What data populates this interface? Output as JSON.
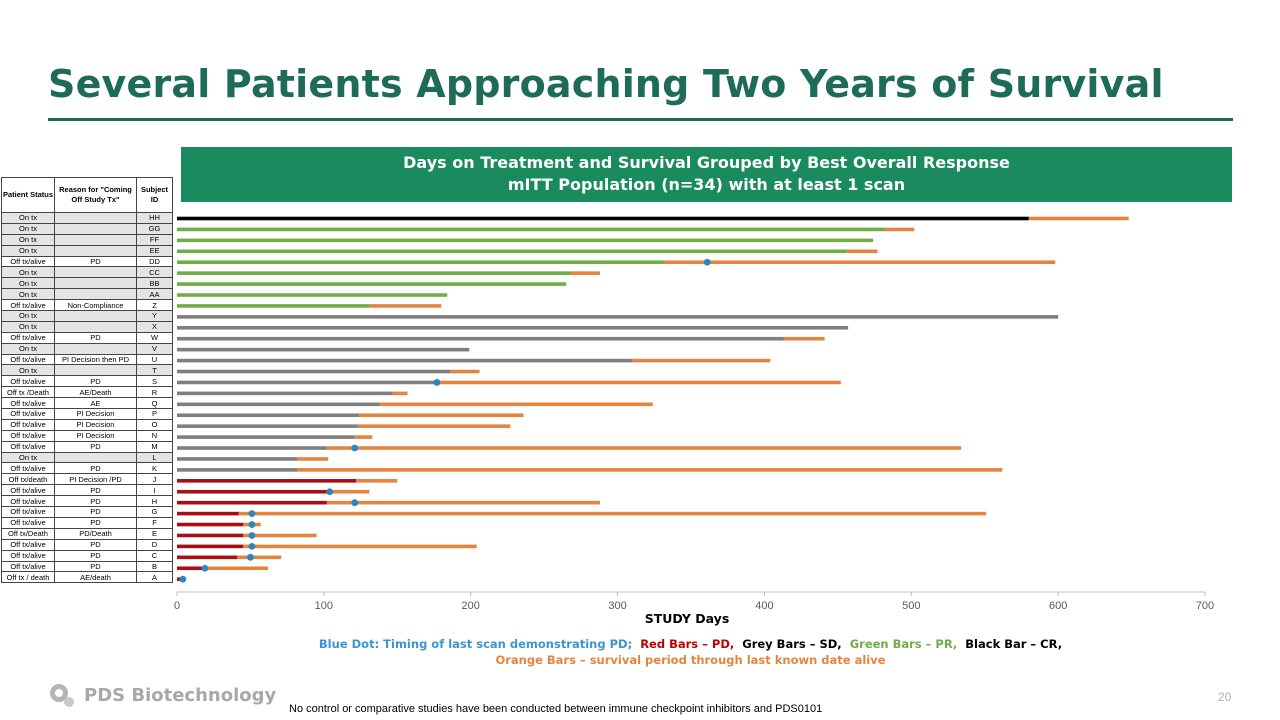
{
  "slide": {
    "title": "Several Patients Approaching Two Years of Survival",
    "banner_line1": "Days on Treatment and Survival Grouped by Best Overall Response",
    "banner_line2": "mITT Population (n=34)  with at least 1 scan",
    "footnote": "No control or comparative studies have been conducted between immune checkpoint inhibitors and PDS0101",
    "page_number": "20",
    "logo_text": "PDS Biotechnology",
    "title_color": "#1E6B58",
    "banner_color": "#1A8B5E"
  },
  "table": {
    "headers": [
      "Patient Status",
      "Reason for \"Coming Off Study Tx\"",
      "Subject ID"
    ],
    "rows": [
      {
        "status": "On tx",
        "reason": "",
        "id": "HH"
      },
      {
        "status": "On tx",
        "reason": "",
        "id": "GG"
      },
      {
        "status": "On tx",
        "reason": "",
        "id": "FF"
      },
      {
        "status": "On tx",
        "reason": "",
        "id": "EE"
      },
      {
        "status": "Off tx/alive",
        "reason": "PD",
        "id": "DD"
      },
      {
        "status": "On tx",
        "reason": "",
        "id": "CC"
      },
      {
        "status": "On tx",
        "reason": "",
        "id": "BB"
      },
      {
        "status": "On tx",
        "reason": "",
        "id": "AA"
      },
      {
        "status": "Off tx/alive",
        "reason": "Non-Compliance",
        "id": "Z"
      },
      {
        "status": "On tx",
        "reason": "",
        "id": "Y"
      },
      {
        "status": "On tx",
        "reason": "",
        "id": "X"
      },
      {
        "status": "Off tx/alive",
        "reason": "PD",
        "id": "W"
      },
      {
        "status": "On tx",
        "reason": "",
        "id": "V"
      },
      {
        "status": "Off tx/alive",
        "reason": "PI Decision then PD",
        "id": "U"
      },
      {
        "status": "On tx",
        "reason": "",
        "id": "T"
      },
      {
        "status": "Off tx/alive",
        "reason": "PD",
        "id": "S"
      },
      {
        "status": "Off tx /Death",
        "reason": "AE/Death",
        "id": "R"
      },
      {
        "status": "Off tx/alive",
        "reason": "AE",
        "id": "Q"
      },
      {
        "status": "Off tx/alive",
        "reason": "PI Decision",
        "id": "P"
      },
      {
        "status": "Off tx/alive",
        "reason": "PI Decision",
        "id": "O"
      },
      {
        "status": "Off tx/alive",
        "reason": "PI Decision",
        "id": "N"
      },
      {
        "status": "Off tx/alive",
        "reason": "PD",
        "id": "M"
      },
      {
        "status": "On tx",
        "reason": "",
        "id": "L"
      },
      {
        "status": "Off tx/alive",
        "reason": "PD",
        "id": "K"
      },
      {
        "status": "Off tx/death",
        "reason": "PI Decision /PD",
        "id": "J"
      },
      {
        "status": "Off tx/alive",
        "reason": "PD",
        "id": "I"
      },
      {
        "status": "Off tx/alive",
        "reason": "PD",
        "id": "H"
      },
      {
        "status": "Off tx/alive",
        "reason": "PD",
        "id": "G"
      },
      {
        "status": "Off tx/alive",
        "reason": "PD",
        "id": "F"
      },
      {
        "status": "Off tx/Death",
        "reason": "PD/Death",
        "id": "E"
      },
      {
        "status": "Off tx/alive",
        "reason": "PD",
        "id": "D"
      },
      {
        "status": "Off tx/alive",
        "reason": "PD",
        "id": "C"
      },
      {
        "status": "Off tx/alive",
        "reason": "PD",
        "id": "B"
      },
      {
        "status": "Off tx / death",
        "reason": "AE/death",
        "id": "A"
      }
    ]
  },
  "legend": {
    "blue": "Blue Dot: Timing of last scan demonstrating PD;",
    "red": "Red Bars – PD,",
    "grey": "Grey Bars – SD,",
    "green": "Green Bars – PR,",
    "black": "Black Bar – CR,",
    "orange": "Orange Bars – survival period through last known date alive"
  },
  "chart_data": {
    "type": "bar",
    "orientation": "horizontal",
    "stacked": true,
    "title": "Days on Treatment and Survival Grouped by Best Overall Response",
    "subtitle": "mITT Population (n=34)  with at least 1 scan",
    "xlabel": "STUDY Days",
    "xlim": [
      0,
      700
    ],
    "xticks": [
      0,
      100,
      200,
      300,
      400,
      500,
      600,
      700
    ],
    "colors": {
      "CR": "#000000",
      "PR": "#70AD47",
      "SD": "#7F7F7F",
      "PD": "#A50F15",
      "survival": "#E3843F",
      "dot": "#2E86C1"
    },
    "series": [
      {
        "id": "HH",
        "response": "CR",
        "treatment_days": 580,
        "survival_end": 648,
        "pd_scan_day": null
      },
      {
        "id": "GG",
        "response": "PR",
        "treatment_days": 482,
        "survival_end": 502,
        "pd_scan_day": null
      },
      {
        "id": "FF",
        "response": "PR",
        "treatment_days": 474,
        "survival_end": null,
        "pd_scan_day": null
      },
      {
        "id": "EE",
        "response": "PR",
        "treatment_days": 456,
        "survival_end": 477,
        "pd_scan_day": null
      },
      {
        "id": "DD",
        "response": "PR",
        "treatment_days": 332,
        "survival_end": 598,
        "pd_scan_day": 361
      },
      {
        "id": "CC",
        "response": "PR",
        "treatment_days": 268,
        "survival_end": 288,
        "pd_scan_day": null
      },
      {
        "id": "BB",
        "response": "PR",
        "treatment_days": 265,
        "survival_end": null,
        "pd_scan_day": null
      },
      {
        "id": "AA",
        "response": "PR",
        "treatment_days": 184,
        "survival_end": null,
        "pd_scan_day": null
      },
      {
        "id": "Z",
        "response": "PR",
        "treatment_days": 131,
        "survival_end": 180,
        "pd_scan_day": null
      },
      {
        "id": "Y",
        "response": "SD",
        "treatment_days": 600,
        "survival_end": null,
        "pd_scan_day": null
      },
      {
        "id": "X",
        "response": "SD",
        "treatment_days": 457,
        "survival_end": null,
        "pd_scan_day": null
      },
      {
        "id": "W",
        "response": "SD",
        "treatment_days": 413,
        "survival_end": 441,
        "pd_scan_day": null
      },
      {
        "id": "V",
        "response": "SD",
        "treatment_days": 199,
        "survival_end": null,
        "pd_scan_day": null
      },
      {
        "id": "U",
        "response": "SD",
        "treatment_days": 310,
        "survival_end": 404,
        "pd_scan_day": null
      },
      {
        "id": "T",
        "response": "SD",
        "treatment_days": 186,
        "survival_end": 206,
        "pd_scan_day": null
      },
      {
        "id": "S",
        "response": "SD",
        "treatment_days": 177,
        "survival_end": 452,
        "pd_scan_day": 177
      },
      {
        "id": "R",
        "response": "SD",
        "treatment_days": 147,
        "survival_end": 157,
        "pd_scan_day": null
      },
      {
        "id": "Q",
        "response": "SD",
        "treatment_days": 138,
        "survival_end": 324,
        "pd_scan_day": null
      },
      {
        "id": "P",
        "response": "SD",
        "treatment_days": 124,
        "survival_end": 236,
        "pd_scan_day": null
      },
      {
        "id": "O",
        "response": "SD",
        "treatment_days": 123,
        "survival_end": 227,
        "pd_scan_day": null
      },
      {
        "id": "N",
        "response": "SD",
        "treatment_days": 121,
        "survival_end": 133,
        "pd_scan_day": null
      },
      {
        "id": "M",
        "response": "SD",
        "treatment_days": 102,
        "survival_end": 534,
        "pd_scan_day": 121
      },
      {
        "id": "L",
        "response": "SD",
        "treatment_days": 82,
        "survival_end": 103,
        "pd_scan_day": null
      },
      {
        "id": "K",
        "response": "SD",
        "treatment_days": 82,
        "survival_end": 562,
        "pd_scan_day": null
      },
      {
        "id": "J",
        "response": "PD",
        "treatment_days": 122,
        "survival_end": 150,
        "pd_scan_day": null
      },
      {
        "id": "I",
        "response": "PD",
        "treatment_days": 102,
        "survival_end": 131,
        "pd_scan_day": 104
      },
      {
        "id": "H",
        "response": "PD",
        "treatment_days": 102,
        "survival_end": 288,
        "pd_scan_day": 121
      },
      {
        "id": "G",
        "response": "PD",
        "treatment_days": 42,
        "survival_end": 551,
        "pd_scan_day": 51
      },
      {
        "id": "F",
        "response": "PD",
        "treatment_days": 45,
        "survival_end": 57,
        "pd_scan_day": 51
      },
      {
        "id": "E",
        "response": "PD",
        "treatment_days": 45,
        "survival_end": 95,
        "pd_scan_day": 51
      },
      {
        "id": "D",
        "response": "PD",
        "treatment_days": 45,
        "survival_end": 204,
        "pd_scan_day": 51
      },
      {
        "id": "C",
        "response": "PD",
        "treatment_days": 41,
        "survival_end": 71,
        "pd_scan_day": 50
      },
      {
        "id": "B",
        "response": "PD",
        "treatment_days": 18,
        "survival_end": 62,
        "pd_scan_day": 19
      },
      {
        "id": "A",
        "response": "PD",
        "treatment_days": 2,
        "survival_end": 5,
        "pd_scan_day": 4
      }
    ]
  }
}
